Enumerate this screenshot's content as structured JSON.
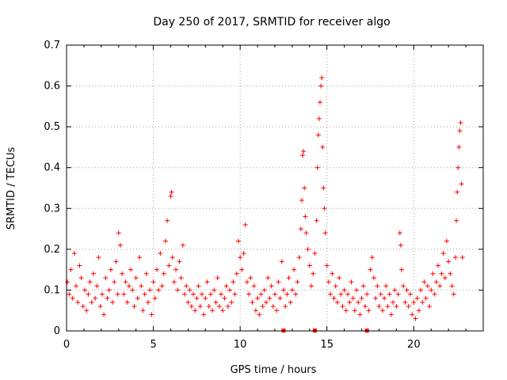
{
  "chart_data": {
    "type": "scatter",
    "title": "Day 250 of 2017, SRMTID for receiver algo",
    "xlabel": "GPS time / hours",
    "ylabel": "SRMTID / TECUs",
    "xlim": [
      0,
      24
    ],
    "ylim": [
      0,
      0.7
    ],
    "xticks": [
      0,
      5,
      10,
      15,
      20
    ],
    "yticks": [
      0,
      0.1,
      0.2,
      0.3,
      0.4,
      0.5,
      0.6,
      0.7
    ],
    "xtick_labels": [
      "0",
      "5",
      "10",
      "15",
      "20"
    ],
    "ytick_labels": [
      "0",
      "0.1",
      "0.2",
      "0.3",
      "0.4",
      "0.5",
      "0.6",
      "0.7"
    ],
    "grid": true,
    "marker": "+",
    "color": "#ff0000",
    "series": [
      {
        "name": "SRMTID",
        "points": [
          [
            0.05,
            0.12
          ],
          [
            0.15,
            0.09
          ],
          [
            0.25,
            0.15
          ],
          [
            0.35,
            0.08
          ],
          [
            0.45,
            0.19
          ],
          [
            0.55,
            0.11
          ],
          [
            0.65,
            0.07
          ],
          [
            0.75,
            0.16
          ],
          [
            0.85,
            0.13
          ],
          [
            0.95,
            0.06
          ],
          [
            1.05,
            0.1
          ],
          [
            1.15,
            0.05
          ],
          [
            1.25,
            0.09
          ],
          [
            1.35,
            0.12
          ],
          [
            1.45,
            0.07
          ],
          [
            1.55,
            0.14
          ],
          [
            1.65,
            0.08
          ],
          [
            1.75,
            0.11
          ],
          [
            1.85,
            0.18
          ],
          [
            1.95,
            0.06
          ],
          [
            2.05,
            0.09
          ],
          [
            2.15,
            0.04
          ],
          [
            2.25,
            0.13
          ],
          [
            2.35,
            0.08
          ],
          [
            2.45,
            0.1
          ],
          [
            2.55,
            0.15
          ],
          [
            2.65,
            0.07
          ],
          [
            2.75,
            0.12
          ],
          [
            2.85,
            0.17
          ],
          [
            2.95,
            0.09
          ],
          [
            3.0,
            0.24
          ],
          [
            3.1,
            0.21
          ],
          [
            3.2,
            0.14
          ],
          [
            3.3,
            0.09
          ],
          [
            3.4,
            0.12
          ],
          [
            3.5,
            0.07
          ],
          [
            3.6,
            0.11
          ],
          [
            3.7,
            0.15
          ],
          [
            3.8,
            0.1
          ],
          [
            3.9,
            0.06
          ],
          [
            4.0,
            0.13
          ],
          [
            4.1,
            0.08
          ],
          [
            4.2,
            0.18
          ],
          [
            4.3,
            0.11
          ],
          [
            4.4,
            0.05
          ],
          [
            4.5,
            0.09
          ],
          [
            4.6,
            0.14
          ],
          [
            4.7,
            0.07
          ],
          [
            4.8,
            0.1
          ],
          [
            4.9,
            0.04
          ],
          [
            5.0,
            0.12
          ],
          [
            5.1,
            0.08
          ],
          [
            5.2,
            0.15
          ],
          [
            5.3,
            0.1
          ],
          [
            5.4,
            0.19
          ],
          [
            5.5,
            0.11
          ],
          [
            5.6,
            0.14
          ],
          [
            5.7,
            0.22
          ],
          [
            5.8,
            0.27
          ],
          [
            5.9,
            0.16
          ],
          [
            6.0,
            0.33
          ],
          [
            6.05,
            0.34
          ],
          [
            6.1,
            0.18
          ],
          [
            6.2,
            0.12
          ],
          [
            6.3,
            0.15
          ],
          [
            6.4,
            0.1
          ],
          [
            6.5,
            0.17
          ],
          [
            6.6,
            0.13
          ],
          [
            6.7,
            0.21
          ],
          [
            6.8,
            0.09
          ],
          [
            6.9,
            0.11
          ],
          [
            7.0,
            0.07
          ],
          [
            7.1,
            0.1
          ],
          [
            7.2,
            0.06
          ],
          [
            7.3,
            0.09
          ],
          [
            7.4,
            0.05
          ],
          [
            7.5,
            0.08
          ],
          [
            7.6,
            0.11
          ],
          [
            7.7,
            0.06
          ],
          [
            7.8,
            0.09
          ],
          [
            7.9,
            0.04
          ],
          [
            8.0,
            0.08
          ],
          [
            8.1,
            0.12
          ],
          [
            8.2,
            0.06
          ],
          [
            8.3,
            0.09
          ],
          [
            8.4,
            0.05
          ],
          [
            8.5,
            0.1
          ],
          [
            8.6,
            0.07
          ],
          [
            8.7,
            0.13
          ],
          [
            8.8,
            0.06
          ],
          [
            8.9,
            0.09
          ],
          [
            9.0,
            0.05
          ],
          [
            9.1,
            0.08
          ],
          [
            9.2,
            0.11
          ],
          [
            9.3,
            0.06
          ],
          [
            9.4,
            0.1
          ],
          [
            9.5,
            0.07
          ],
          [
            9.6,
            0.12
          ],
          [
            9.7,
            0.09
          ],
          [
            9.8,
            0.14
          ],
          [
            9.9,
            0.22
          ],
          [
            10.0,
            0.18
          ],
          [
            10.1,
            0.15
          ],
          [
            10.2,
            0.19
          ],
          [
            10.3,
            0.26
          ],
          [
            10.4,
            0.12
          ],
          [
            10.5,
            0.09
          ],
          [
            10.6,
            0.13
          ],
          [
            10.7,
            0.07
          ],
          [
            10.8,
            0.11
          ],
          [
            10.9,
            0.05
          ],
          [
            11.0,
            0.08
          ],
          [
            11.1,
            0.04
          ],
          [
            11.2,
            0.09
          ],
          [
            11.3,
            0.06
          ],
          [
            11.4,
            0.1
          ],
          [
            11.5,
            0.07
          ],
          [
            11.6,
            0.13
          ],
          [
            11.7,
            0.08
          ],
          [
            11.8,
            0.11
          ],
          [
            11.9,
            0.06
          ],
          [
            12.0,
            0.09
          ],
          [
            12.1,
            0.05
          ],
          [
            12.2,
            0.12
          ],
          [
            12.3,
            0.08
          ],
          [
            12.4,
            0.17
          ],
          [
            12.5,
            0.1
          ],
          [
            12.6,
            0.06
          ],
          [
            12.7,
            0.09
          ],
          [
            12.8,
            0.13
          ],
          [
            12.9,
            0.07
          ],
          [
            13.0,
            0.1
          ],
          [
            13.1,
            0.15
          ],
          [
            13.2,
            0.09
          ],
          [
            13.3,
            0.12
          ],
          [
            13.4,
            0.18
          ],
          [
            13.5,
            0.25
          ],
          [
            13.55,
            0.32
          ],
          [
            13.6,
            0.43
          ],
          [
            13.65,
            0.44
          ],
          [
            13.7,
            0.35
          ],
          [
            13.75,
            0.28
          ],
          [
            13.8,
            0.24
          ],
          [
            13.9,
            0.2
          ],
          [
            14.0,
            0.16
          ],
          [
            14.1,
            0.11
          ],
          [
            14.2,
            0.14
          ],
          [
            14.3,
            0.19
          ],
          [
            14.4,
            0.27
          ],
          [
            14.45,
            0.4
          ],
          [
            14.5,
            0.48
          ],
          [
            14.55,
            0.52
          ],
          [
            14.6,
            0.56
          ],
          [
            14.65,
            0.6
          ],
          [
            14.7,
            0.62
          ],
          [
            14.75,
            0.45
          ],
          [
            14.8,
            0.35
          ],
          [
            14.85,
            0.3
          ],
          [
            14.9,
            0.24
          ],
          [
            15.0,
            0.16
          ],
          [
            15.1,
            0.12
          ],
          [
            15.2,
            0.09
          ],
          [
            15.3,
            0.14
          ],
          [
            15.4,
            0.08
          ],
          [
            15.5,
            0.11
          ],
          [
            15.6,
            0.07
          ],
          [
            15.7,
            0.13
          ],
          [
            15.8,
            0.09
          ],
          [
            15.9,
            0.06
          ],
          [
            16.0,
            0.1
          ],
          [
            16.1,
            0.05
          ],
          [
            16.2,
            0.09
          ],
          [
            16.3,
            0.07
          ],
          [
            16.4,
            0.12
          ],
          [
            16.5,
            0.08
          ],
          [
            16.6,
            0.05
          ],
          [
            16.7,
            0.1
          ],
          [
            16.8,
            0.07
          ],
          [
            16.9,
            0.04
          ],
          [
            17.0,
            0.08
          ],
          [
            17.1,
            0.11
          ],
          [
            17.2,
            0.06
          ],
          [
            17.3,
            0.09
          ],
          [
            17.4,
            0.05
          ],
          [
            17.5,
            0.15
          ],
          [
            17.6,
            0.18
          ],
          [
            17.7,
            0.13
          ],
          [
            17.8,
            0.08
          ],
          [
            17.9,
            0.11
          ],
          [
            18.0,
            0.06
          ],
          [
            18.1,
            0.09
          ],
          [
            18.2,
            0.05
          ],
          [
            18.3,
            0.08
          ],
          [
            18.4,
            0.11
          ],
          [
            18.5,
            0.06
          ],
          [
            18.6,
            0.09
          ],
          [
            18.7,
            0.04
          ],
          [
            18.8,
            0.07
          ],
          [
            18.9,
            0.1
          ],
          [
            19.0,
            0.06
          ],
          [
            19.1,
            0.09
          ],
          [
            19.2,
            0.24
          ],
          [
            19.25,
            0.21
          ],
          [
            19.3,
            0.15
          ],
          [
            19.4,
            0.11
          ],
          [
            19.5,
            0.07
          ],
          [
            19.6,
            0.1
          ],
          [
            19.7,
            0.06
          ],
          [
            19.8,
            0.09
          ],
          [
            19.9,
            0.04
          ],
          [
            20.0,
            0.07
          ],
          [
            20.1,
            0.03
          ],
          [
            20.2,
            0.08
          ],
          [
            20.3,
            0.05
          ],
          [
            20.4,
            0.1
          ],
          [
            20.5,
            0.07
          ],
          [
            20.6,
            0.12
          ],
          [
            20.7,
            0.08
          ],
          [
            20.8,
            0.11
          ],
          [
            20.9,
            0.06
          ],
          [
            21.0,
            0.1
          ],
          [
            21.1,
            0.14
          ],
          [
            21.2,
            0.09
          ],
          [
            21.3,
            0.12
          ],
          [
            21.4,
            0.16
          ],
          [
            21.5,
            0.11
          ],
          [
            21.6,
            0.14
          ],
          [
            21.7,
            0.19
          ],
          [
            21.8,
            0.13
          ],
          [
            21.9,
            0.22
          ],
          [
            22.0,
            0.17
          ],
          [
            22.1,
            0.14
          ],
          [
            22.2,
            0.11
          ],
          [
            22.3,
            0.09
          ],
          [
            22.4,
            0.18
          ],
          [
            22.45,
            0.27
          ],
          [
            22.5,
            0.34
          ],
          [
            22.55,
            0.4
          ],
          [
            22.6,
            0.45
          ],
          [
            22.65,
            0.49
          ],
          [
            22.7,
            0.51
          ],
          [
            22.75,
            0.36
          ],
          [
            22.8,
            0.18
          ]
        ]
      }
    ],
    "axis_markers": [
      12.5,
      14.3,
      17.3
    ]
  }
}
